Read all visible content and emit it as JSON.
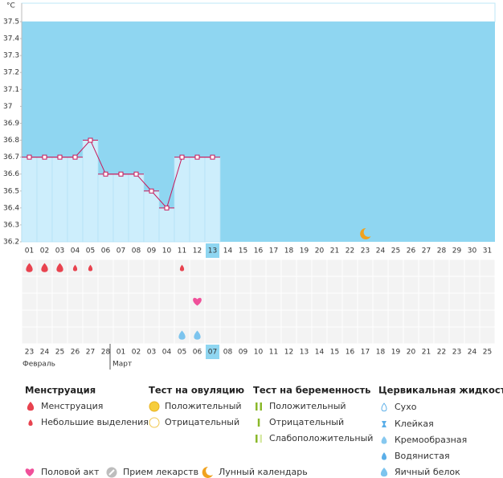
{
  "chart_data": {
    "type": "line",
    "unit": "°C",
    "ylim": [
      36.2,
      37.5
    ],
    "yticks": [
      36.2,
      36.3,
      36.4,
      36.5,
      36.6,
      36.7,
      36.8,
      36.9,
      37,
      37.1,
      37.2,
      37.3,
      37.4,
      37.5
    ],
    "categories": [
      "01",
      "02",
      "03",
      "04",
      "05",
      "06",
      "07",
      "08",
      "09",
      "10",
      "11",
      "12",
      "13",
      "14",
      "15",
      "16",
      "17",
      "18",
      "19",
      "20",
      "21",
      "22",
      "23",
      "24",
      "25",
      "26",
      "27",
      "28",
      "29",
      "30",
      "31"
    ],
    "values": [
      36.7,
      36.7,
      36.7,
      36.7,
      36.8,
      36.6,
      36.6,
      36.6,
      36.5,
      36.4,
      36.7,
      36.7,
      36.7,
      null,
      null,
      null,
      null,
      null,
      null,
      null,
      null,
      null,
      null,
      null,
      null,
      null,
      null,
      null,
      null,
      null,
      null
    ],
    "color": "#c8185a",
    "bar_color": "#cdeefc",
    "background": "#8fd6f1",
    "chart_markers": [
      {
        "index": 22,
        "icon": "moon"
      }
    ],
    "calendar": {
      "dates": [
        "23",
        "24",
        "25",
        "26",
        "27",
        "28",
        "01",
        "02",
        "03",
        "04",
        "05",
        "06",
        "07",
        "08",
        "09",
        "10",
        "11",
        "12",
        "13",
        "14",
        "15",
        "16",
        "17",
        "18",
        "19",
        "20",
        "21",
        "22",
        "23",
        "24",
        "25"
      ],
      "weekend": [
        false,
        false,
        true,
        true,
        false,
        false,
        false,
        false,
        false,
        true,
        true,
        false,
        false,
        false,
        false,
        false,
        true,
        true,
        false,
        false,
        false,
        false,
        false,
        true,
        true,
        false,
        false,
        false,
        false,
        false,
        true
      ],
      "months": [
        {
          "label": "Февраль",
          "index": 0
        },
        {
          "label": "Март",
          "index": 6
        }
      ]
    },
    "symptoms": [
      {
        "row": 0,
        "index": 0,
        "icon": "drop-heavy"
      },
      {
        "row": 0,
        "index": 1,
        "icon": "drop-heavy"
      },
      {
        "row": 0,
        "index": 2,
        "icon": "drop-heavy"
      },
      {
        "row": 0,
        "index": 3,
        "icon": "drop-light"
      },
      {
        "row": 0,
        "index": 4,
        "icon": "drop-light"
      },
      {
        "row": 0,
        "index": 10,
        "icon": "drop-light"
      },
      {
        "row": 2,
        "index": 11,
        "icon": "heart"
      },
      {
        "row": 4,
        "index": 10,
        "icon": "egg-white"
      },
      {
        "row": 4,
        "index": 11,
        "icon": "egg-white"
      }
    ]
  },
  "legend": {
    "sections": [
      {
        "title": "Менструация",
        "items": [
          {
            "label": "Менструация",
            "icon": "drop-heavy"
          },
          {
            "label": "Небольшие выделения",
            "icon": "drop-light"
          }
        ]
      },
      {
        "title": "Тест на овуляцию",
        "items": [
          {
            "label": "Положительный",
            "icon": "ovu-pos"
          },
          {
            "label": "Отрицательный",
            "icon": "ovu-neg"
          }
        ]
      },
      {
        "title": "Тест на беременность",
        "items": [
          {
            "label": "Положительный",
            "icon": "preg-pos"
          },
          {
            "label": "Отрицательный",
            "icon": "preg-neg"
          },
          {
            "label": "Слабоположительный",
            "icon": "preg-weak"
          }
        ]
      },
      {
        "title": "Цервикальная жидкость",
        "items": [
          {
            "label": "Сухо",
            "icon": "dry"
          },
          {
            "label": "Клейкая",
            "icon": "sticky"
          },
          {
            "label": "Кремообразная",
            "icon": "creamy"
          },
          {
            "label": "Водянистая",
            "icon": "watery"
          },
          {
            "label": "Яичный белок",
            "icon": "egg-white"
          }
        ]
      }
    ],
    "extra": [
      {
        "label": "Половой акт",
        "icon": "heart"
      },
      {
        "label": "Прием лекарств",
        "icon": "pill"
      },
      {
        "label": "Лунный календарь",
        "icon": "moon"
      }
    ]
  }
}
